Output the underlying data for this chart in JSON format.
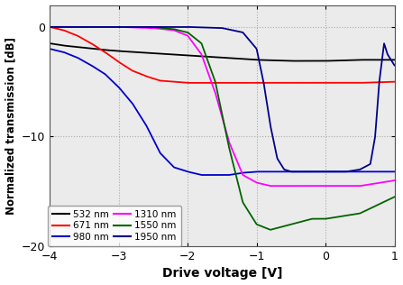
{
  "title": "",
  "xlabel": "Drive voltage [V]",
  "ylabel": "Normalized transmission [dB]",
  "xlim": [
    -4,
    1
  ],
  "ylim": [
    -20,
    2
  ],
  "yticks": [
    0,
    -10,
    -20
  ],
  "xticks": [
    -4,
    -3,
    -2,
    -1,
    0,
    1
  ],
  "curves": {
    "532nm": {
      "color": "#000000",
      "label": "532 nm",
      "points_x": [
        -4.0,
        -3.8,
        -3.5,
        -3.2,
        -3.0,
        -2.5,
        -2.0,
        -1.5,
        -1.0,
        -0.5,
        0.0,
        0.5,
        1.0
      ],
      "points_y": [
        -1.5,
        -1.7,
        -1.9,
        -2.1,
        -2.2,
        -2.4,
        -2.6,
        -2.8,
        -3.0,
        -3.1,
        -3.1,
        -3.0,
        -3.0
      ]
    },
    "671nm": {
      "color": "#ff0000",
      "label": "671 nm",
      "points_x": [
        -4.0,
        -3.8,
        -3.6,
        -3.4,
        -3.2,
        -3.0,
        -2.8,
        -2.6,
        -2.4,
        -2.2,
        -2.0,
        -1.5,
        -1.0,
        -0.5,
        0.0,
        0.5,
        1.0
      ],
      "points_y": [
        0.0,
        -0.3,
        -0.8,
        -1.5,
        -2.3,
        -3.2,
        -4.0,
        -4.5,
        -4.9,
        -5.0,
        -5.1,
        -5.1,
        -5.1,
        -5.1,
        -5.1,
        -5.1,
        -5.0
      ]
    },
    "980nm": {
      "color": "#0000cc",
      "label": "980 nm",
      "points_x": [
        -4.0,
        -3.8,
        -3.6,
        -3.4,
        -3.2,
        -3.0,
        -2.8,
        -2.6,
        -2.4,
        -2.2,
        -2.0,
        -1.8,
        -1.6,
        -1.4,
        -1.2,
        -1.0,
        -0.8,
        -0.5,
        0.0,
        0.5,
        1.0
      ],
      "points_y": [
        -2.0,
        -2.3,
        -2.8,
        -3.5,
        -4.3,
        -5.5,
        -7.0,
        -9.0,
        -11.5,
        -12.8,
        -13.2,
        -13.5,
        -13.5,
        -13.5,
        -13.3,
        -13.2,
        -13.2,
        -13.2,
        -13.2,
        -13.2,
        -13.2
      ]
    },
    "1310nm": {
      "color": "#ff00ff",
      "label": "1310 nm",
      "points_x": [
        -4.0,
        -3.5,
        -3.0,
        -2.5,
        -2.2,
        -2.0,
        -1.8,
        -1.6,
        -1.4,
        -1.2,
        -1.0,
        -0.8,
        -0.5,
        0.0,
        0.5,
        1.0
      ],
      "points_y": [
        0.0,
        0.0,
        0.0,
        -0.1,
        -0.3,
        -0.8,
        -2.5,
        -6.0,
        -10.5,
        -13.5,
        -14.2,
        -14.5,
        -14.5,
        -14.5,
        -14.5,
        -14.0
      ]
    },
    "1550nm": {
      "color": "#006400",
      "label": "1550 nm",
      "points_x": [
        -4.0,
        -3.5,
        -3.0,
        -2.5,
        -2.2,
        -2.0,
        -1.8,
        -1.6,
        -1.4,
        -1.2,
        -1.0,
        -0.8,
        -0.5,
        -0.2,
        0.0,
        0.5,
        1.0
      ],
      "points_y": [
        0.0,
        0.0,
        0.0,
        0.0,
        -0.2,
        -0.5,
        -1.5,
        -5.0,
        -11.0,
        -16.0,
        -18.0,
        -18.5,
        -18.0,
        -17.5,
        -17.5,
        -17.0,
        -15.5
      ]
    },
    "1950nm": {
      "color": "#00008b",
      "label": "1950 nm",
      "points_x": [
        -4.0,
        -3.5,
        -3.0,
        -2.5,
        -2.0,
        -1.5,
        -1.2,
        -1.0,
        -0.9,
        -0.8,
        -0.7,
        -0.6,
        -0.5,
        -0.2,
        0.0,
        0.3,
        0.5,
        0.65,
        0.72,
        0.78,
        0.85,
        0.9,
        1.0
      ],
      "points_y": [
        0.0,
        0.0,
        0.0,
        0.0,
        0.0,
        -0.1,
        -0.5,
        -2.0,
        -5.0,
        -9.0,
        -12.0,
        -13.0,
        -13.2,
        -13.2,
        -13.2,
        -13.2,
        -13.0,
        -12.5,
        -10.0,
        -5.0,
        -1.5,
        -2.5,
        -3.5
      ]
    }
  },
  "legend_order": [
    "532nm",
    "671nm",
    "980nm",
    "1310nm",
    "1550nm",
    "1950nm"
  ]
}
